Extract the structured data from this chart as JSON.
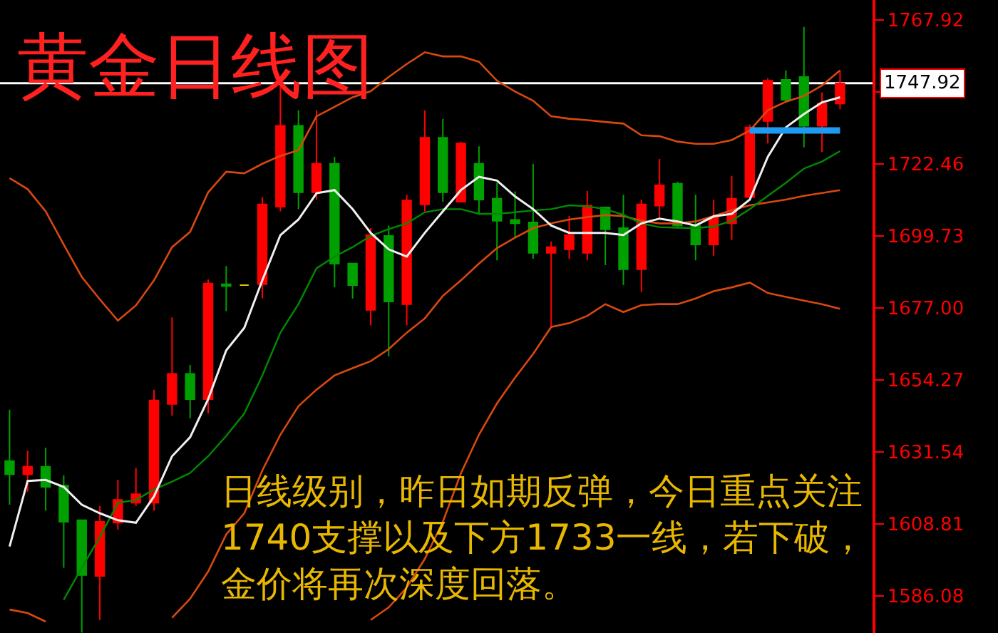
{
  "chart_data": {
    "type": "candlestick",
    "title": "黄金日线图",
    "annotations": [
      "日线级别，昨日如期反弹，今日重点关注1740支撑以及下方1733一线，若下破，金价将再次深度回落。"
    ],
    "categories": [
      null,
      null,
      null,
      null,
      null,
      null,
      null,
      null,
      null,
      null,
      null,
      null,
      null,
      null,
      null,
      null,
      null,
      null,
      null,
      null,
      null,
      null,
      null,
      null,
      null,
      null,
      null,
      null,
      null,
      null,
      null,
      null,
      null,
      null,
      null,
      null,
      null,
      null,
      null,
      null,
      null,
      null,
      null,
      null,
      null,
      null,
      null
    ],
    "ohlc": [
      [
        1628.7,
        1644.9,
        1614.9,
        1624.5
      ],
      [
        1624.5,
        1632.0,
        1619.0,
        1626.9
      ],
      [
        1626.9,
        1632.9,
        1613.0,
        1620.5
      ],
      [
        1620.9,
        1624.2,
        1595.0,
        1609.5
      ],
      [
        1610.0,
        1610.0,
        1574.5,
        1592.7
      ],
      [
        1592.4,
        1614.5,
        1578.5,
        1609.5
      ],
      [
        1609.2,
        1622.7,
        1607.0,
        1616.4
      ],
      [
        1615.5,
        1626.5,
        1614.5,
        1618.2
      ],
      [
        1615.5,
        1651.2,
        1613.0,
        1647.8
      ],
      [
        1646.7,
        1674.0,
        1643.0,
        1656.2
      ],
      [
        1656.2,
        1659.0,
        1642.2,
        1648.2
      ],
      [
        1648.2,
        1686.0,
        1643.7,
        1684.7
      ],
      [
        1684.5,
        1690.2,
        1676.0,
        1683.9
      ],
      [
        1684.2,
        1684.2,
        1684.2,
        1684.2
      ],
      [
        1684.5,
        1712.0,
        1680.0,
        1709.7
      ],
      [
        1709.0,
        1747.2,
        1707.5,
        1734.5
      ],
      [
        1734.5,
        1739.4,
        1708.2,
        1713.5
      ],
      [
        1713.5,
        1739.4,
        1711.2,
        1722.5
      ],
      [
        1722.5,
        1724.7,
        1683.5,
        1691.0
      ],
      [
        1691.0,
        1691.0,
        1680.0,
        1684.2
      ],
      [
        1676.4,
        1702.2,
        1671.5,
        1700.0
      ],
      [
        1699.7,
        1703.0,
        1661.7,
        1679.0
      ],
      [
        1678.2,
        1712.7,
        1671.5,
        1710.9
      ],
      [
        1709.7,
        1739.4,
        1707.5,
        1730.7
      ],
      [
        1730.7,
        1736.7,
        1710.5,
        1713.5
      ],
      [
        1710.5,
        1729.5,
        1710.5,
        1728.9
      ],
      [
        1722.5,
        1728.0,
        1706.4,
        1711.2
      ],
      [
        1711.5,
        1716.5,
        1692.0,
        1704.5
      ],
      [
        1704.8,
        1713.8,
        1699.2,
        1703.7
      ],
      [
        1704.0,
        1722.5,
        1692.5,
        1694.4
      ],
      [
        1694.4,
        1698.0,
        1671.0,
        1696.2
      ],
      [
        1695.5,
        1706.0,
        1692.5,
        1700.0
      ],
      [
        1694.4,
        1713.9,
        1692.0,
        1709.3
      ],
      [
        1708.7,
        1708.7,
        1690.5,
        1701.8
      ],
      [
        1702.2,
        1712.7,
        1684.2,
        1689.2
      ],
      [
        1689.2,
        1711.2,
        1682.0,
        1709.7
      ],
      [
        1709.3,
        1724.0,
        1705.5,
        1715.7
      ],
      [
        1716.2,
        1716.8,
        1702.5,
        1703.0
      ],
      [
        1703.0,
        1712.7,
        1692.0,
        1697.0
      ],
      [
        1697.0,
        1711.2,
        1693.5,
        1705.5
      ],
      [
        1703.7,
        1718.7,
        1698.5,
        1711.5
      ],
      [
        1712.0,
        1734.9,
        1712.0,
        1734.0
      ],
      [
        1736.0,
        1749.5,
        1728.9,
        1748.7
      ],
      [
        1749.0,
        1752.0,
        1742.0,
        1742.7
      ],
      [
        1749.9,
        1765.7,
        1727.7,
        1734.5
      ],
      [
        1734.5,
        1745.0,
        1726.2,
        1741.5
      ],
      [
        1741.5,
        1752.0,
        1739.7,
        1747.9
      ]
    ],
    "colors": [
      "#00a000",
      "#ff0000",
      "#00a000",
      "#00a000",
      "#00a000",
      "#ff0000",
      "#ff0000",
      "#ff0000",
      "#ff0000",
      "#ff0000",
      "#00a000",
      "#ff0000",
      "#00a000",
      "#e6c000",
      "#ff0000",
      "#ff0000",
      "#00a000",
      "#ff0000",
      "#00a000",
      "#00a000",
      "#ff0000",
      "#00a000",
      "#ff0000",
      "#ff0000",
      "#00a000",
      "#ff0000",
      "#00a000",
      "#00a000",
      "#00a000",
      "#00a000",
      "#ff0000",
      "#ff0000",
      "#ff0000",
      "#00a000",
      "#00a000",
      "#ff0000",
      "#ff0000",
      "#00a000",
      "#00a000",
      "#ff0000",
      "#ff0000",
      "#ff0000",
      "#ff0000",
      "#00a000",
      "#00a000",
      "#ff0000",
      "#ff0000"
    ],
    "series": [
      {
        "type": "line",
        "color": "#d9480f",
        "values": [
          1718.0,
          1714.5,
          1707.5,
          1697.0,
          1686.8,
          1679.7,
          1673.0,
          1677.8,
          1685.7,
          1696.2,
          1701.0,
          1713.5,
          1720.0,
          1719.5,
          1722.5,
          1725.0,
          1726.8,
          1737.5,
          1740.5,
          1743.5,
          1745.4,
          1749.9,
          1754.0,
          1757.7,
          1756.4,
          1756.4,
          1754.7,
          1748.7,
          1745.3,
          1742.4,
          1737.5,
          1736.7,
          1736.3,
          1735.7,
          1735.2,
          1731.5,
          1731.2,
          1729.5,
          1728.8,
          1728.8,
          1730.0,
          1733.0,
          1739.4,
          1742.1,
          1743.9,
          1747.2,
          1752.0
        ]
      },
      {
        "type": "line",
        "color": "#d9480f",
        "values": [
          1581.8,
          1580.7,
          1578.0,
          null,
          null,
          null,
          null,
          null,
          null,
          1579.2,
          1585.2,
          1593.8,
          1605.5,
          1612.2,
          1625.7,
          1637.0,
          1646.0,
          1651.2,
          1655.7,
          1658.0,
          1660.2,
          1664.0,
          1669.2,
          1673.7,
          1680.8,
          1685.7,
          1691.0,
          1695.9,
          1699.2,
          1702.2,
          1703.7,
          1704.9,
          1705.7,
          1706.3,
          1706.0,
          1704.5,
          1703.7,
          1703.7,
          1704.3,
          1706.0,
          1707.8,
          1709.4,
          1710.3,
          1711.2,
          1712.4,
          1713.3,
          1714.2
        ]
      },
      {
        "type": "line",
        "color": "#d9480f",
        "values": [
          null,
          null,
          null,
          null,
          null,
          null,
          null,
          null,
          null,
          null,
          null,
          null,
          null,
          null,
          null,
          null,
          null,
          null,
          null,
          null,
          1578.5,
          1582.5,
          1588.8,
          1597.8,
          1609.5,
          1624.8,
          1637.0,
          1646.9,
          1655.0,
          1662.5,
          1671.0,
          1672.2,
          1674.5,
          1678.2,
          1675.7,
          1677.9,
          1678.2,
          1678.2,
          1680.0,
          1682.3,
          1683.5,
          1685.0,
          1681.7,
          1680.5,
          1679.3,
          1678.2,
          1676.7
        ]
      },
      {
        "type": "line",
        "color": "#008a00",
        "values": [
          null,
          null,
          null,
          1584.9,
          1595.0,
          1604.7,
          1615.5,
          1616.4,
          1619.7,
          1622.2,
          1624.9,
          1630.2,
          1636.6,
          1643.7,
          1655.7,
          1669.2,
          1678.2,
          1689.5,
          1693.2,
          1696.2,
          1699.7,
          1701.9,
          1703.7,
          1707.2,
          1708.2,
          1708.2,
          1706.7,
          1706.7,
          1707.2,
          1707.8,
          1708.2,
          1709.4,
          1709.1,
          1708.2,
          1706.4,
          1703.7,
          1702.5,
          1702.3,
          1702.2,
          1702.7,
          1704.5,
          1708.2,
          1712.4,
          1716.5,
          1721.0,
          1723.2,
          1726.5
        ]
      },
      {
        "type": "line",
        "color": "#f0f0f0",
        "values": [
          1601.7,
          1622.4,
          1622.7,
          1620.5,
          1614.9,
          1612.2,
          1610.0,
          1609.2,
          1617.5,
          1630.2,
          1636.2,
          1648.2,
          1663.6,
          1670.7,
          1685.7,
          1700.0,
          1704.9,
          1713.2,
          1714.2,
          1708.2,
          1700.7,
          1695.5,
          1693.2,
          1700.7,
          1707.5,
          1714.2,
          1718.4,
          1717.2,
          1712.2,
          1708.2,
          1703.0,
          1700.7,
          1700.7,
          1700.7,
          1700.0,
          1703.7,
          1705.2,
          1704.3,
          1703.0,
          1705.9,
          1706.7,
          1711.2,
          1724.7,
          1734.0,
          1738.2,
          1741.9,
          1743.5
        ]
      },
      {
        "type": "line",
        "color": "#1e9bf0",
        "values": [
          null,
          null,
          null,
          null,
          null,
          null,
          null,
          null,
          null,
          null,
          null,
          null,
          null,
          null,
          null,
          null,
          null,
          null,
          null,
          null,
          null,
          null,
          null,
          null,
          null,
          null,
          null,
          null,
          null,
          null,
          null,
          null,
          null,
          null,
          null,
          null,
          null,
          null,
          null,
          null,
          null,
          1733,
          1733,
          1733,
          1733,
          1733,
          1733
        ]
      }
    ],
    "ylim": [
      1574.4,
      1774.2
    ],
    "yticks": [
      1586.08,
      1608.81,
      1631.54,
      1654.27,
      {
        "value": 1677,
        "label": "1677.00"
      },
      1699.73,
      1722.46,
      {
        "value": 1745.19,
        "label": null
      },
      1767.92
    ],
    "ref_lines": [
      {
        "axis": "y",
        "value": 1747.92,
        "label": "1747.92",
        "color": "#ffffff"
      }
    ],
    "tick_labels": "y"
  }
}
